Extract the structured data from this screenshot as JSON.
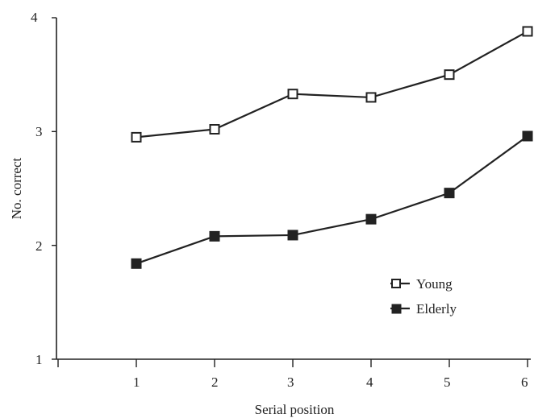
{
  "chart_data": {
    "type": "line",
    "x": [
      1,
      2,
      3,
      4,
      5,
      6
    ],
    "series": [
      {
        "name": "Young",
        "values": [
          2.95,
          3.02,
          3.33,
          3.3,
          3.5,
          3.88
        ],
        "marker": "open-square",
        "color": "#222222"
      },
      {
        "name": "Elderly",
        "values": [
          1.84,
          2.08,
          2.09,
          2.23,
          2.46,
          2.96
        ],
        "marker": "filled-square",
        "color": "#222222"
      }
    ],
    "xlabel": "Serial position",
    "ylabel": "No. correct",
    "xlim": [
      0,
      6
    ],
    "ylim": [
      1,
      4
    ],
    "xticks": [
      "1",
      "2",
      "3",
      "4",
      "5",
      "6"
    ],
    "yticks": [
      "1",
      "2",
      "3",
      "4"
    ],
    "grid": false,
    "legend_position": "lower-right"
  }
}
